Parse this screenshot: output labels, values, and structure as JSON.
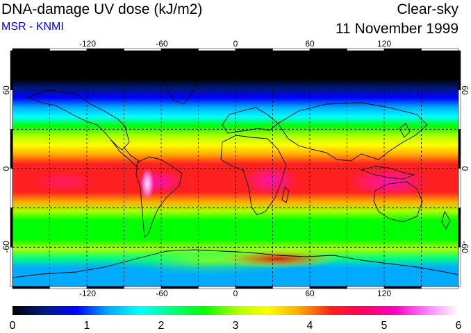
{
  "header": {
    "title": "DNA-damage UV dose (kJ/m2)",
    "subtitle": "MSR - KNMI",
    "sky_condition": "Clear-sky",
    "date": "11 November 1999"
  },
  "map": {
    "projection": "equirectangular",
    "lon_range": [
      -180,
      180
    ],
    "lat_range": [
      -90,
      90
    ],
    "gridline_spacing_deg": 30,
    "lon_tick_labels": [
      "-120",
      "-60",
      "0",
      "60",
      "120"
    ],
    "lat_tick_labels": [
      "60",
      "0",
      "-60"
    ],
    "coastlines": "black outline"
  },
  "colorbar": {
    "min": 0,
    "max": 6,
    "tick_labels": [
      "0",
      "1",
      "2",
      "3",
      "4",
      "5",
      "6"
    ],
    "colors": [
      "#000000",
      "#001a80",
      "#0000ff",
      "#00aaff",
      "#00ffff",
      "#00ff80",
      "#00ff00",
      "#aaff00",
      "#ffff00",
      "#ffaa00",
      "#ff2020",
      "#ff0060",
      "#ff00c0",
      "#ff80ff",
      "#ffffff"
    ]
  }
}
